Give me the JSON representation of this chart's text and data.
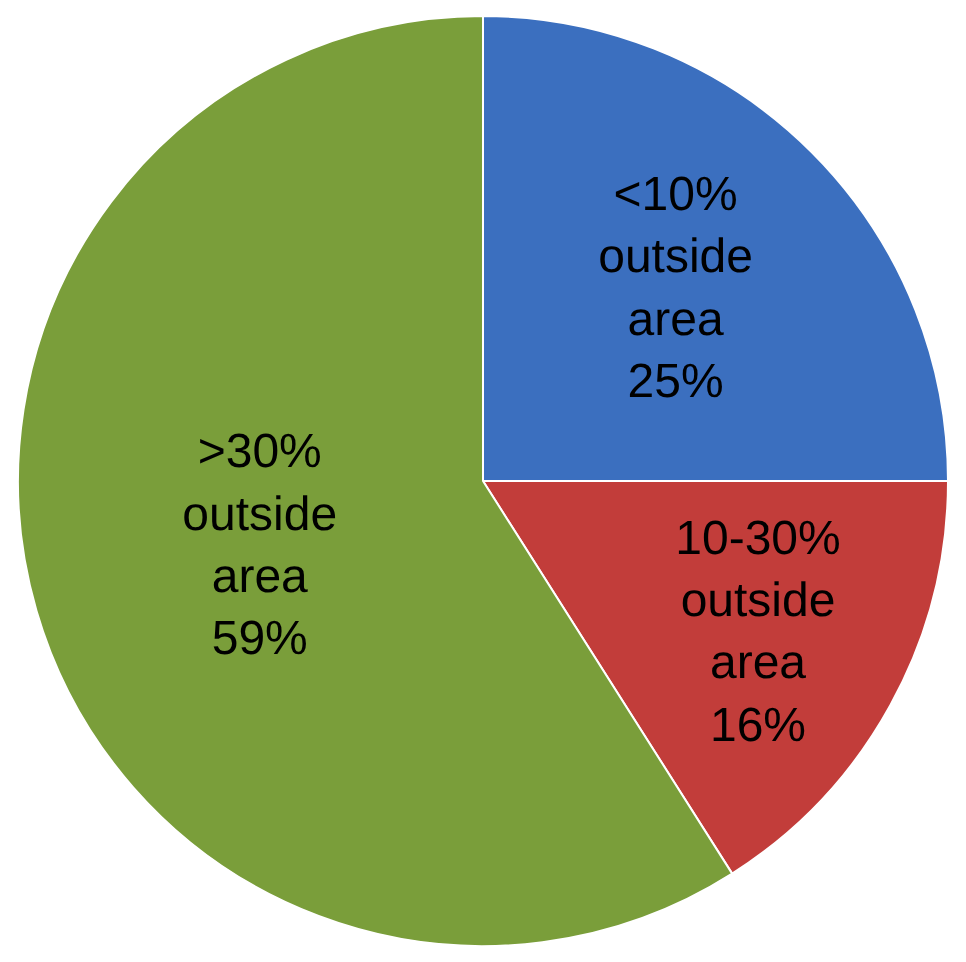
{
  "chart_data": {
    "type": "pie",
    "categories": [
      "<10% outside area",
      "10-30% outside area",
      ">30% outside area"
    ],
    "values": [
      25,
      16,
      59
    ],
    "value_labels": [
      "25%",
      "16%",
      "59%"
    ],
    "colors": [
      "#3b6fbf",
      "#c23d3a",
      "#7a9e3a"
    ],
    "legend": false
  }
}
